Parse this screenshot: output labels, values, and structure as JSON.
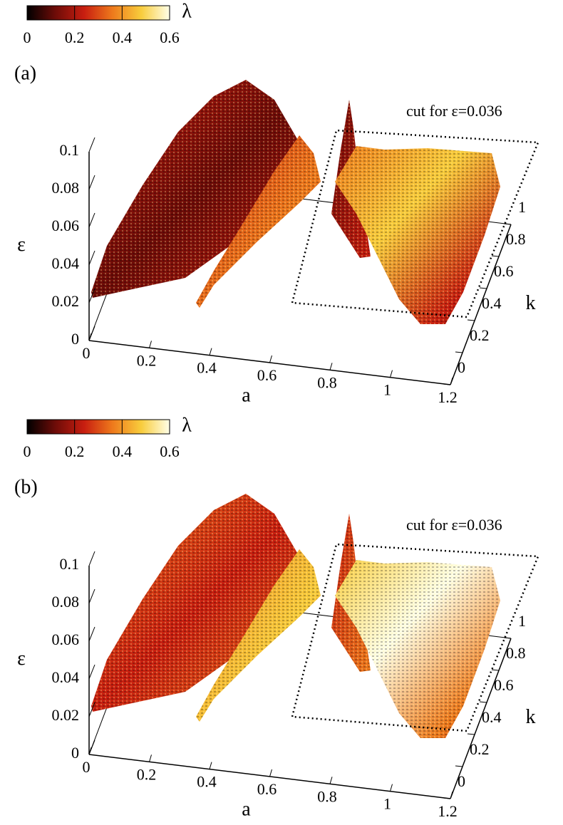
{
  "chart_data": [
    {
      "type": "scatter3d",
      "panel_label": "(a)",
      "annotation": "cut for ε=0.036",
      "xlabel": "a",
      "ylabel": "k",
      "zlabel": "ε",
      "xlim": [
        0,
        1.2
      ],
      "xticks": [
        0,
        0.2,
        0.4,
        0.6,
        0.8,
        1,
        1.2
      ],
      "ylim": [
        0,
        1
      ],
      "yticks": [
        0,
        0.2,
        0.4,
        0.6,
        0.8,
        1
      ],
      "zlim": [
        0,
        0.1
      ],
      "zticks": [
        0,
        0.02,
        0.04,
        0.06,
        0.08,
        0.1
      ],
      "colorbar_label": "λ",
      "clim": [
        0,
        0.6
      ],
      "cticks": [
        0,
        0.2,
        0.4,
        0.6
      ],
      "colormap": [
        "#000000",
        "#6e0c08",
        "#c81e10",
        "#ee7a1c",
        "#f8cc3c",
        "#ffffe8"
      ]
    },
    {
      "type": "scatter3d",
      "panel_label": "(b)",
      "annotation": "cut for ε=0.036",
      "xlabel": "a",
      "ylabel": "k",
      "zlabel": "ε",
      "xlim": [
        0,
        1.2
      ],
      "xticks": [
        0,
        0.2,
        0.4,
        0.6,
        0.8,
        1,
        1.2
      ],
      "ylim": [
        0,
        1
      ],
      "yticks": [
        0,
        0.2,
        0.4,
        0.6,
        0.8,
        1
      ],
      "zlim": [
        0,
        0.1
      ],
      "zticks": [
        0,
        0.02,
        0.04,
        0.06,
        0.08,
        0.1
      ],
      "colorbar_label": "λ",
      "clim": [
        0,
        0.6
      ],
      "cticks": [
        0,
        0.2,
        0.4,
        0.6
      ],
      "colormap": [
        "#000000",
        "#6e0c08",
        "#c81e10",
        "#ee7a1c",
        "#f8cc3c",
        "#ffffe8"
      ]
    }
  ]
}
